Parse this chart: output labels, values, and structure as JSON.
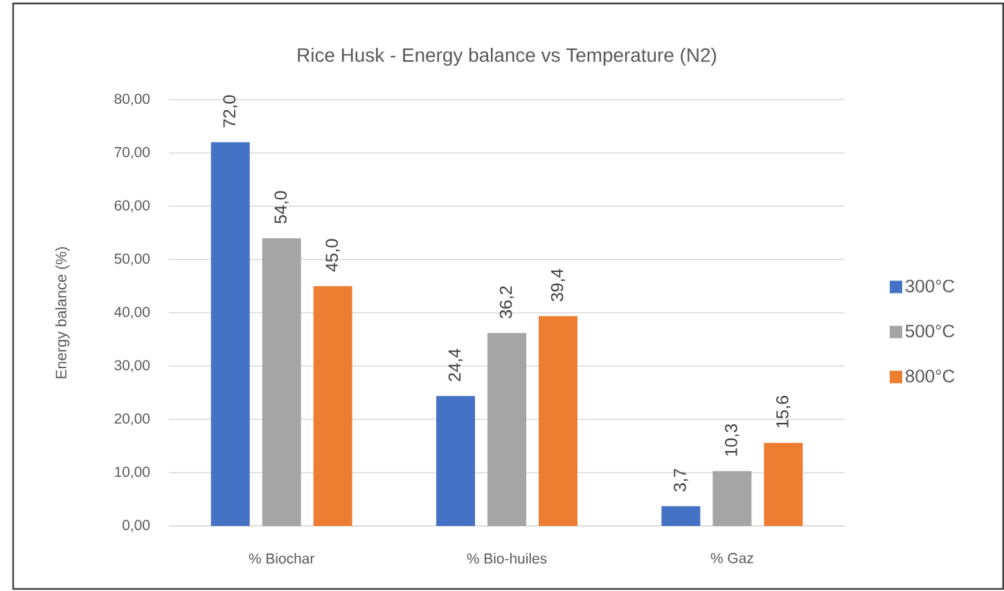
{
  "chart_data": {
    "type": "bar",
    "title": "Rice Husk - Energy balance vs Temperature (N2)",
    "ylabel": "Energy balance (%)",
    "categories": [
      "% Biochar",
      "% Bio-huiles",
      "% Gaz"
    ],
    "series": [
      {
        "name": "300°C",
        "color": "#4472c4",
        "values": [
          72.0,
          24.4,
          3.7
        ],
        "value_labels": [
          "72,0",
          "24,4",
          "3,7"
        ]
      },
      {
        "name": "500°C",
        "color": "#a5a5a5",
        "values": [
          54.0,
          36.2,
          10.3
        ],
        "value_labels": [
          "54,0",
          "36,2",
          "10,3"
        ]
      },
      {
        "name": "800°C",
        "color": "#ed7d31",
        "values": [
          45.0,
          39.4,
          15.6
        ],
        "value_labels": [
          "45,0",
          "39,4",
          "15,6"
        ]
      }
    ],
    "ylim": [
      0,
      80
    ],
    "yticks": [
      {
        "value": 0,
        "label": "0,00"
      },
      {
        "value": 10,
        "label": "10,00"
      },
      {
        "value": 20,
        "label": "20,00"
      },
      {
        "value": 30,
        "label": "30,00"
      },
      {
        "value": 40,
        "label": "40,00"
      },
      {
        "value": 50,
        "label": "50,00"
      },
      {
        "value": 60,
        "label": "60,00"
      },
      {
        "value": 70,
        "label": "70,00"
      },
      {
        "value": 80,
        "label": "80,00"
      }
    ],
    "grid": "y",
    "legend": "right"
  }
}
